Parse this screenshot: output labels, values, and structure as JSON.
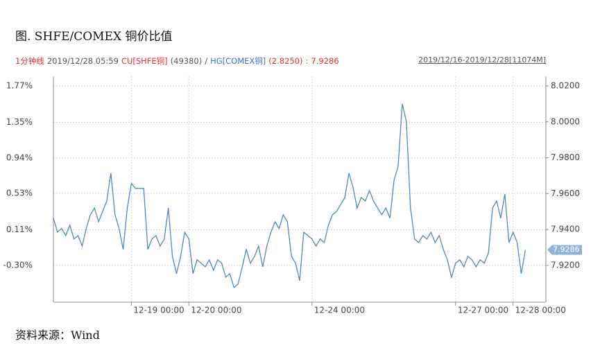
{
  "title": "图. SHFE/COMEX 铜价比值",
  "header": {
    "interval": "1分钟线",
    "time": "2019/12/28 05:59",
    "cu_label": "CU[SHFE铜]",
    "cu_value": "(49380)",
    "separator": "/",
    "hg_label": "HG[COMEX铜]",
    "hg_value": "(2.8250)",
    "colon": ":",
    "ratio": "7.9286",
    "range": "2019/12/16-2019/12/28[11074M]"
  },
  "chart_data": {
    "type": "line",
    "categories": [
      null,
      null,
      null,
      null,
      null,
      null,
      null,
      null,
      null,
      null,
      null,
      null,
      null,
      null,
      null,
      null,
      null,
      null,
      null,
      "12-19 00:00",
      null,
      null,
      null,
      null,
      null,
      null,
      null,
      null,
      null,
      null,
      null,
      null,
      null,
      "12-20 00:00",
      null,
      null,
      null,
      null,
      null,
      null,
      null,
      null,
      null,
      null,
      null,
      null,
      null,
      null,
      null,
      null,
      null,
      null,
      null,
      null,
      null,
      null,
      null,
      null,
      null,
      null,
      null,
      null,
      null,
      "12-24 00:00",
      null,
      null,
      null,
      null,
      null,
      null,
      null,
      null,
      null,
      null,
      null,
      null,
      null,
      null,
      null,
      null,
      null,
      null,
      null,
      null,
      null,
      null,
      null,
      null,
      null,
      null,
      null,
      null,
      null,
      null,
      null,
      null,
      null,
      null,
      "12-27 00:00",
      null,
      null,
      null,
      null,
      null,
      null,
      null,
      null,
      null,
      null,
      null,
      null,
      null,
      "12-28 00:00",
      null,
      null,
      null,
      null,
      null,
      null,
      null,
      null
    ],
    "series": [
      {
        "color": "#4f87bd",
        "axis": "y2",
        "values": [
          7.9463,
          7.9385,
          7.9405,
          7.9366,
          7.9424,
          7.9347,
          7.9366,
          7.9308,
          7.9405,
          7.9482,
          7.952,
          7.9443,
          7.9501,
          7.9559,
          7.9714,
          7.9482,
          7.9405,
          7.9289,
          7.952,
          7.9656,
          7.9629,
          7.9629,
          7.9629,
          7.9289,
          7.9347,
          7.9366,
          7.9308,
          7.9347,
          7.952,
          7.925,
          7.9154,
          7.925,
          7.9385,
          7.9347,
          7.9154,
          7.9231,
          7.9212,
          7.9192,
          7.9231,
          7.9173,
          7.9231,
          7.9212,
          7.9134,
          7.9154,
          7.9077,
          7.9096,
          7.9192,
          7.9289,
          7.9212,
          7.925,
          7.9308,
          7.9192,
          7.9308,
          7.9385,
          7.9443,
          7.9405,
          7.9482,
          7.9443,
          7.925,
          7.9212,
          7.9115,
          7.9385,
          7.9366,
          7.9347,
          7.9308,
          7.9347,
          7.9327,
          7.9424,
          7.9482,
          7.9501,
          7.954,
          7.9578,
          7.9714,
          7.9636,
          7.952,
          7.9578,
          7.9559,
          7.9617,
          7.9559,
          7.952,
          7.9482,
          7.952,
          7.9463,
          7.9675,
          7.9752,
          8.01,
          8.0003,
          7.952,
          7.9347,
          7.9327,
          7.9366,
          7.9347,
          7.9385,
          7.9327,
          7.9366,
          7.9289,
          7.9231,
          7.9134,
          7.9212,
          7.9231,
          7.9192,
          7.925,
          7.9231,
          7.9192,
          7.9231,
          7.9212,
          7.927,
          7.952,
          7.9559,
          7.9463,
          7.9598,
          7.9327,
          7.9385,
          7.9327,
          7.9154,
          7.9286,
          null,
          null,
          null,
          null,
          null
        ]
      }
    ],
    "ylim": [
      -0.724,
      1.882
    ],
    "yticks": [
      {
        "value": 1.77,
        "label": "1.77%"
      },
      {
        "value": 1.35,
        "label": "1.35%"
      },
      {
        "value": 0.94,
        "label": "0.94%"
      },
      {
        "value": 0.53,
        "label": "0.53%"
      },
      {
        "value": 0.11,
        "label": "0.11%"
      },
      {
        "value": -0.3,
        "label": "-0.30%"
      }
    ],
    "y2lim": [
      7.8995,
      8.0254
    ],
    "y2ticks": [
      {
        "value": 8.02,
        "label": "8.0200"
      },
      {
        "value": 8.0,
        "label": "8.0000"
      },
      {
        "value": 7.98,
        "label": "7.9800"
      },
      {
        "value": 7.96,
        "label": "7.9600"
      },
      {
        "value": 7.94,
        "label": "7.9400"
      },
      {
        "value": 7.92,
        "label": "7.9200"
      }
    ],
    "grid": true
  },
  "source": "资料来源：Wind"
}
